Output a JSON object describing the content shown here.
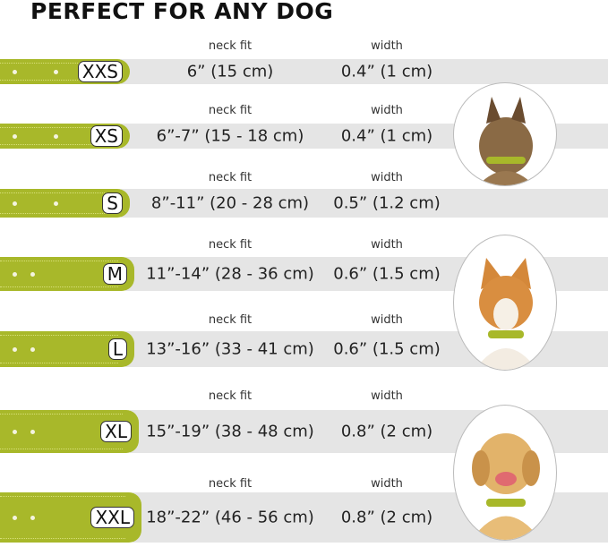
{
  "title": "PERFECT FOR ANY DOG",
  "colors": {
    "collar": "#a8b82a",
    "band": "#e5e5e5"
  },
  "neck_label": "neck fit",
  "width_label": "width",
  "sizes": [
    {
      "size": "XXS",
      "neck": "6” (15 cm)",
      "width": "0.4” (1 cm)"
    },
    {
      "size": "XS",
      "neck": "6”-7” (15 - 18 cm)",
      "width": "0.4” (1 cm)"
    },
    {
      "size": "S",
      "neck": "8”-11” (20 - 28 cm)",
      "width": "0.5” (1.2 cm)"
    },
    {
      "size": "M",
      "neck": "11”-14” (28 - 36 cm)",
      "width": "0.6” (1.5 cm)"
    },
    {
      "size": "L",
      "neck": "13”-16” (33 - 41 cm)",
      "width": "0.6” (1.5 cm)"
    },
    {
      "size": "XL",
      "neck": "15”-19” (38 - 48 cm)",
      "width": "0.8” (2 cm)"
    },
    {
      "size": "XXL",
      "neck": "18”-22” (46 - 56 cm)",
      "width": "0.8” (2 cm)"
    }
  ],
  "dogs": [
    "terrier-photo",
    "corgi-photo",
    "labrador-photo"
  ]
}
